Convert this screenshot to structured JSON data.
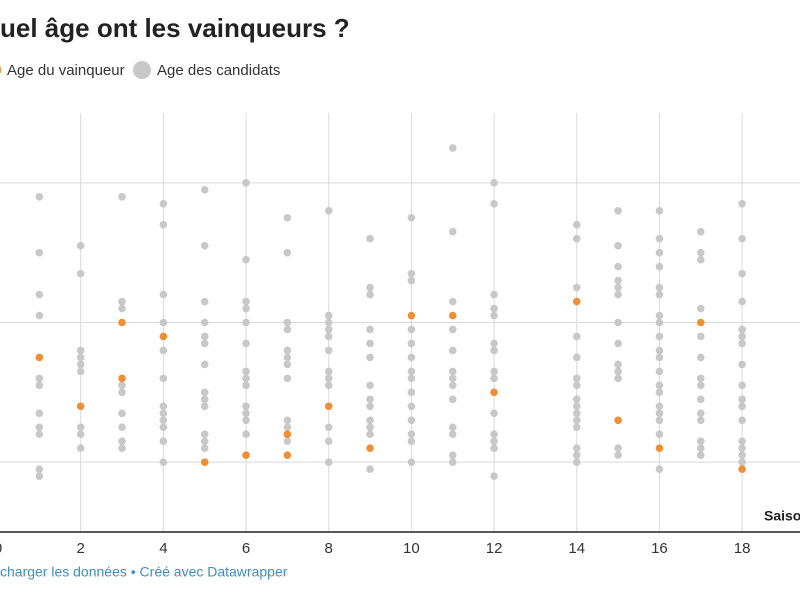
{
  "chart_data": {
    "type": "scatter",
    "title": "uel âge ont les vainqueurs ?",
    "x_label": "Saiso",
    "footer": "charger les données • Créé avec Datawrapper",
    "xlim": [
      0,
      19.4
    ],
    "xticks": [
      0,
      2,
      4,
      6,
      8,
      10,
      12,
      14,
      16,
      18
    ],
    "ylim": [
      15,
      45
    ],
    "ygrid": [
      20,
      30,
      40
    ],
    "grid": true,
    "series": [
      {
        "name": "Age du vainqueur",
        "color": "#ee8f35",
        "x": [
          1,
          2,
          3,
          3,
          4,
          5,
          6,
          7,
          7,
          8,
          9,
          10,
          11,
          12,
          14,
          15,
          16,
          17,
          18
        ],
        "y": [
          27.5,
          24,
          30,
          26,
          29,
          20,
          20.5,
          22,
          20.5,
          24,
          21,
          30.5,
          30.5,
          25,
          31.5,
          23,
          21,
          30,
          19.5
        ]
      },
      {
        "name": "Age des candidats",
        "color": "#c8c8c8",
        "x": [
          1,
          1,
          1,
          1,
          1,
          1,
          1,
          1,
          1,
          1,
          1,
          2,
          2,
          2,
          2,
          2,
          2,
          2,
          2,
          2,
          3,
          3,
          3,
          3,
          3,
          3,
          3,
          3,
          3,
          4,
          4,
          4,
          4,
          4,
          4,
          4,
          4,
          4,
          4,
          4,
          4,
          5,
          5,
          5,
          5,
          5,
          5,
          5,
          5,
          5,
          5,
          5,
          5,
          5,
          6,
          6,
          6,
          6,
          6,
          6,
          6,
          6,
          6,
          6,
          6,
          6,
          6,
          7,
          7,
          7,
          7,
          7,
          7,
          7,
          7,
          7,
          7,
          7,
          8,
          8,
          8,
          8,
          8,
          8,
          8,
          8,
          8,
          8,
          8,
          8,
          9,
          9,
          9,
          9,
          9,
          9,
          9,
          9,
          9,
          9,
          9,
          9,
          9,
          10,
          10,
          10,
          10,
          10,
          10,
          10,
          10,
          10,
          10,
          10,
          10,
          10,
          10,
          11,
          11,
          11,
          11,
          11,
          11,
          11,
          11,
          11,
          11,
          11,
          11,
          11,
          12,
          12,
          12,
          12,
          12,
          12,
          12,
          12,
          12,
          12,
          12,
          12,
          12,
          12,
          14,
          14,
          14,
          14,
          14,
          14,
          14,
          14,
          14,
          14,
          14,
          14,
          14,
          14,
          14,
          15,
          15,
          15,
          15,
          15,
          15,
          15,
          15,
          15,
          15,
          15,
          15,
          15,
          16,
          16,
          16,
          16,
          16,
          16,
          16,
          16,
          16,
          16,
          16,
          16,
          16,
          16,
          16,
          16,
          16,
          16,
          16,
          17,
          17,
          17,
          17,
          17,
          17,
          17,
          17,
          17,
          17,
          17,
          17,
          17,
          17,
          18,
          18,
          18,
          18,
          18,
          18,
          18,
          18,
          18,
          18,
          18,
          18,
          18,
          18,
          18,
          18
        ],
        "y": [
          39,
          35,
          32,
          30.5,
          26,
          25.5,
          23.5,
          22.5,
          22,
          19.5,
          19,
          35.5,
          33.5,
          28,
          27.5,
          27,
          26.5,
          22.5,
          22,
          21,
          39,
          31.5,
          31,
          25.5,
          25,
          23.5,
          22.5,
          21.5,
          21,
          38.5,
          37,
          32,
          30,
          28,
          26,
          24,
          23.5,
          23,
          22.5,
          21.5,
          20,
          39.5,
          35.5,
          31.5,
          30,
          29,
          28.5,
          27,
          25,
          24.5,
          24,
          22,
          21.5,
          21,
          40,
          34.5,
          31.5,
          31,
          30,
          28.5,
          26.5,
          26,
          25.5,
          24,
          23.5,
          23,
          22,
          37.5,
          35,
          30,
          29.5,
          28,
          27.5,
          27,
          26,
          23,
          22.5,
          21.5,
          38,
          30.5,
          30,
          29.5,
          29,
          28,
          26.5,
          26,
          25.5,
          22.5,
          21.5,
          20,
          36,
          32.5,
          32,
          29.5,
          28.5,
          27.5,
          25.5,
          24.5,
          24,
          23,
          22.5,
          22,
          19.5,
          37.5,
          33.5,
          33,
          29.5,
          28.5,
          27.5,
          26.5,
          26,
          25,
          24,
          23,
          22,
          21.5,
          20,
          42.5,
          36.5,
          31.5,
          29.5,
          28,
          26.5,
          26,
          25.5,
          24.5,
          22.5,
          22,
          20.5,
          20,
          40,
          38.5,
          32,
          31,
          30.5,
          28.5,
          28,
          26.5,
          26,
          23.5,
          22,
          21.5,
          21,
          19,
          37,
          36,
          32.5,
          29,
          27.5,
          26,
          25.5,
          24.5,
          24,
          23.5,
          23,
          22.5,
          21,
          20.5,
          20,
          38,
          35.5,
          34,
          33,
          32.5,
          32,
          30,
          28.5,
          27,
          26.5,
          26,
          21,
          20.5,
          38,
          36,
          35,
          34,
          32.5,
          32,
          30.5,
          30,
          29,
          28,
          27.5,
          26.5,
          25.5,
          25,
          24,
          23.5,
          23,
          22,
          19.5,
          36.5,
          35,
          34.5,
          31,
          29,
          27.5,
          26,
          25.5,
          24.5,
          23.5,
          23,
          21.5,
          21,
          20.5,
          38.5,
          36,
          33.5,
          31.5,
          29.5,
          29,
          28.5,
          27,
          25.5,
          24.5,
          24,
          23,
          21.5,
          21,
          20.5,
          20
        ]
      }
    ]
  }
}
